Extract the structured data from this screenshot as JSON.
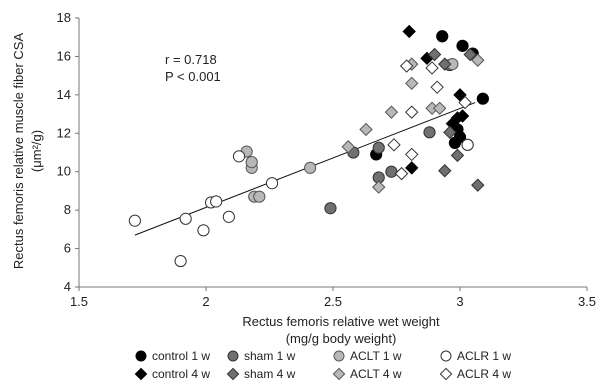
{
  "chart_data": {
    "type": "scatter",
    "xlabel_line1": "Rectus femoris relative wet weight",
    "xlabel_line2": "(mg/g body weight)",
    "ylabel_line1": "Rectus femoris relative muscle fiber CSA",
    "ylabel_line2": "(μm²/g)",
    "xlim": [
      1.5,
      3.5
    ],
    "ylim": [
      4,
      18
    ],
    "x_ticks": [
      1.5,
      2,
      2.5,
      3,
      3.5
    ],
    "y_ticks": [
      4,
      6,
      8,
      10,
      12,
      14,
      16,
      18
    ],
    "x_tick_labels": [
      "1.5",
      "2",
      "2.5",
      "3",
      "3.5"
    ],
    "y_tick_labels": [
      "4",
      "6",
      "8",
      "10",
      "12",
      "14",
      "16",
      "18"
    ],
    "annotations": {
      "r_text": "r = 0.718",
      "p_text": "P < 0.001"
    },
    "trendline": {
      "x": [
        1.72,
        3.06
      ],
      "y": [
        6.7,
        13.6
      ]
    },
    "legend_position": "bottom",
    "series": [
      {
        "name": "control 1 w",
        "marker": "circle",
        "fill": "#000000",
        "stroke": "#000000",
        "points": [
          [
            2.93,
            17.05
          ],
          [
            3.01,
            16.55
          ],
          [
            3.05,
            16.15
          ],
          [
            3.09,
            13.8
          ],
          [
            2.67,
            10.9
          ],
          [
            2.98,
            11.5
          ],
          [
            3.0,
            11.8
          ],
          [
            2.99,
            12.2
          ]
        ]
      },
      {
        "name": "sham 1 w",
        "marker": "circle",
        "fill": "#707070",
        "stroke": "#333333",
        "points": [
          [
            2.58,
            11.0
          ],
          [
            2.68,
            11.25
          ],
          [
            2.68,
            9.7
          ],
          [
            2.73,
            10.0
          ],
          [
            2.49,
            8.1
          ],
          [
            2.88,
            12.05
          ],
          [
            2.96,
            15.55
          ]
        ]
      },
      {
        "name": "ACLT 1 w",
        "marker": "circle",
        "fill": "#b8b8b8",
        "stroke": "#555555",
        "points": [
          [
            2.16,
            11.05
          ],
          [
            2.18,
            10.2
          ],
          [
            2.18,
            10.5
          ],
          [
            2.19,
            8.7
          ],
          [
            2.21,
            8.7
          ],
          [
            2.41,
            10.2
          ],
          [
            2.97,
            15.6
          ],
          [
            3.03,
            11.4
          ]
        ]
      },
      {
        "name": "ACLR 1 w",
        "marker": "circle",
        "fill": "#ffffff",
        "stroke": "#333333",
        "points": [
          [
            1.72,
            7.45
          ],
          [
            1.9,
            5.35
          ],
          [
            1.92,
            7.55
          ],
          [
            1.99,
            6.95
          ],
          [
            2.02,
            8.4
          ],
          [
            2.04,
            8.45
          ],
          [
            2.09,
            7.65
          ],
          [
            2.13,
            10.8
          ],
          [
            2.26,
            9.4
          ],
          [
            3.03,
            11.4
          ]
        ]
      },
      {
        "name": "control 4 w",
        "marker": "diamond",
        "fill": "#000000",
        "stroke": "#000000",
        "points": [
          [
            2.8,
            17.3
          ],
          [
            2.87,
            15.9
          ],
          [
            3.0,
            14.0
          ],
          [
            2.99,
            12.8
          ],
          [
            2.97,
            12.5
          ],
          [
            3.01,
            12.9
          ],
          [
            2.81,
            10.2
          ]
        ]
      },
      {
        "name": "sham 4 w",
        "marker": "diamond",
        "fill": "#707070",
        "stroke": "#333333",
        "points": [
          [
            2.9,
            16.1
          ],
          [
            2.94,
            15.6
          ],
          [
            3.04,
            16.1
          ],
          [
            2.96,
            12.05
          ],
          [
            2.94,
            10.05
          ],
          [
            2.99,
            10.85
          ],
          [
            3.07,
            9.3
          ]
        ]
      },
      {
        "name": "ACLT 4 w",
        "marker": "diamond",
        "fill": "#b8b8b8",
        "stroke": "#555555",
        "points": [
          [
            2.81,
            15.6
          ],
          [
            2.81,
            14.6
          ],
          [
            2.89,
            13.3
          ],
          [
            2.73,
            13.1
          ],
          [
            2.63,
            12.2
          ],
          [
            2.56,
            11.3
          ],
          [
            2.68,
            9.2
          ],
          [
            3.07,
            15.8
          ],
          [
            2.92,
            13.3
          ]
        ]
      },
      {
        "name": "ACLR 4 w",
        "marker": "diamond",
        "fill": "#ffffff",
        "stroke": "#333333",
        "points": [
          [
            2.79,
            15.5
          ],
          [
            2.91,
            14.4
          ],
          [
            2.81,
            13.1
          ],
          [
            2.74,
            11.4
          ],
          [
            2.81,
            10.9
          ],
          [
            2.77,
            9.9
          ],
          [
            3.02,
            13.6
          ],
          [
            2.89,
            15.4
          ]
        ]
      }
    ]
  }
}
